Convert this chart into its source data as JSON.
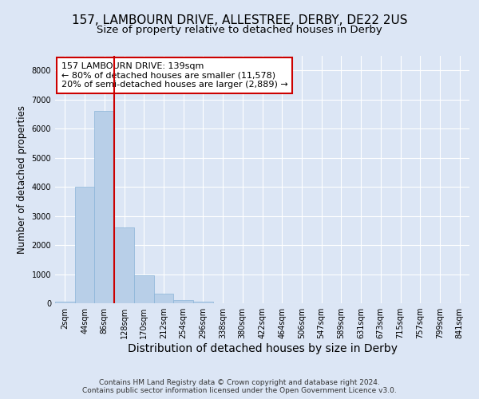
{
  "title_line1": "157, LAMBOURN DRIVE, ALLESTREE, DERBY, DE22 2US",
  "title_line2": "Size of property relative to detached houses in Derby",
  "xlabel": "Distribution of detached houses by size in Derby",
  "ylabel": "Number of detached properties",
  "footer_line1": "Contains HM Land Registry data © Crown copyright and database right 2024.",
  "footer_line2": "Contains public sector information licensed under the Open Government Licence v3.0.",
  "annotation_line1": "157 LAMBOURN DRIVE: 139sqm",
  "annotation_line2": "← 80% of detached houses are smaller (11,578)",
  "annotation_line3": "20% of semi-detached houses are larger (2,889) →",
  "categories": [
    "2sqm",
    "44sqm",
    "86sqm",
    "128sqm",
    "170sqm",
    "212sqm",
    "254sqm",
    "296sqm",
    "338sqm",
    "380sqm",
    "422sqm",
    "464sqm",
    "506sqm",
    "547sqm",
    "589sqm",
    "631sqm",
    "673sqm",
    "715sqm",
    "757sqm",
    "799sqm",
    "841sqm"
  ],
  "values": [
    50,
    4000,
    6600,
    2600,
    950,
    320,
    110,
    60,
    0,
    0,
    0,
    0,
    0,
    0,
    0,
    0,
    0,
    0,
    0,
    0,
    0
  ],
  "bar_color": "#b8cfe8",
  "bar_edgecolor": "#8ab4d8",
  "vline_color": "#cc0000",
  "vline_position": 2.5,
  "ylim": [
    0,
    8500
  ],
  "yticks": [
    0,
    1000,
    2000,
    3000,
    4000,
    5000,
    6000,
    7000,
    8000
  ],
  "bg_color": "#dce6f5",
  "plot_bg_color": "#dce6f5",
  "grid_color": "#ffffff",
  "annotation_box_edgecolor": "#cc0000",
  "title_fontsize": 11,
  "subtitle_fontsize": 9.5,
  "xlabel_fontsize": 10,
  "ylabel_fontsize": 8.5,
  "tick_fontsize": 7,
  "annotation_fontsize": 8,
  "footer_fontsize": 6.5
}
